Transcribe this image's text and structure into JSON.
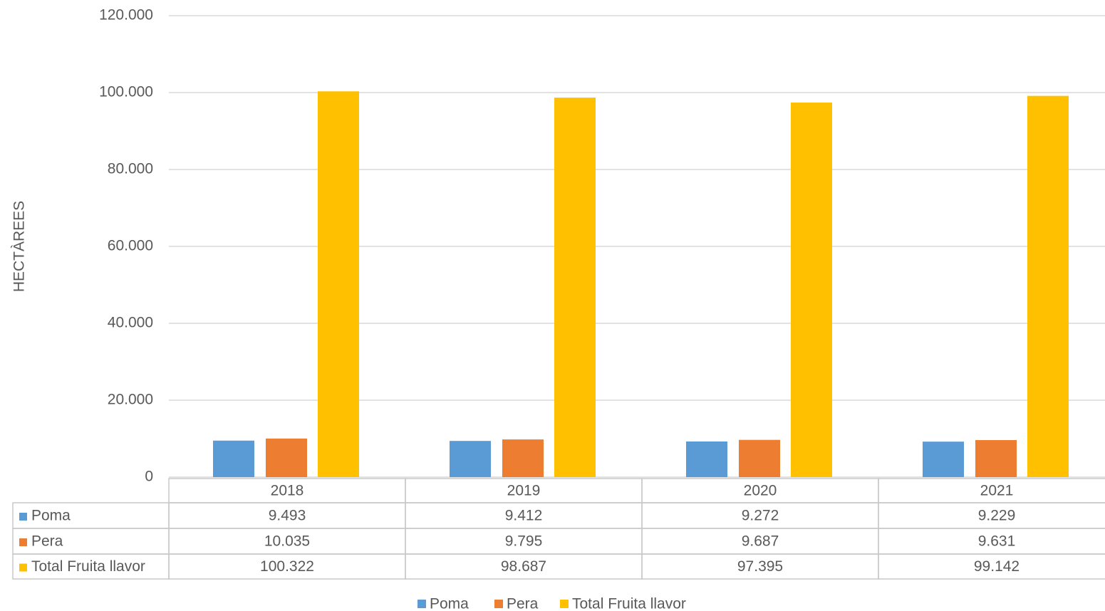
{
  "chart_data": {
    "type": "bar",
    "y_label": "HECTÀREES",
    "categories": [
      "2018",
      "2019",
      "2020",
      "2021"
    ],
    "series": [
      {
        "name": "Poma",
        "color": "#5b9bd5",
        "values": [
          9493,
          9412,
          9272,
          9229
        ],
        "value_labels": [
          "9.493",
          "9.412",
          "9.272",
          "9.229"
        ]
      },
      {
        "name": "Pera",
        "color": "#ed7d31",
        "values": [
          10035,
          9795,
          9687,
          9631
        ],
        "value_labels": [
          "10.035",
          "9.795",
          "9.687",
          "9.631"
        ]
      },
      {
        "name": "Total Fruita llavor",
        "color": "#ffc000",
        "values": [
          100322,
          98687,
          97395,
          99142
        ],
        "value_labels": [
          "100.322",
          "98.687",
          "97.395",
          "99.142"
        ]
      }
    ],
    "ylim": [
      0,
      120000
    ],
    "yticks": [
      0,
      {
        "value": 20000,
        "label": "20.000"
      },
      {
        "value": 40000,
        "label": "40.000"
      },
      {
        "value": 60000,
        "label": "60.000"
      },
      {
        "value": 80000,
        "label": "80.000"
      },
      {
        "value": 100000,
        "label": "100.000"
      },
      {
        "value": 120000,
        "label": "120.000"
      }
    ],
    "grid": true,
    "legend": "bottom"
  }
}
